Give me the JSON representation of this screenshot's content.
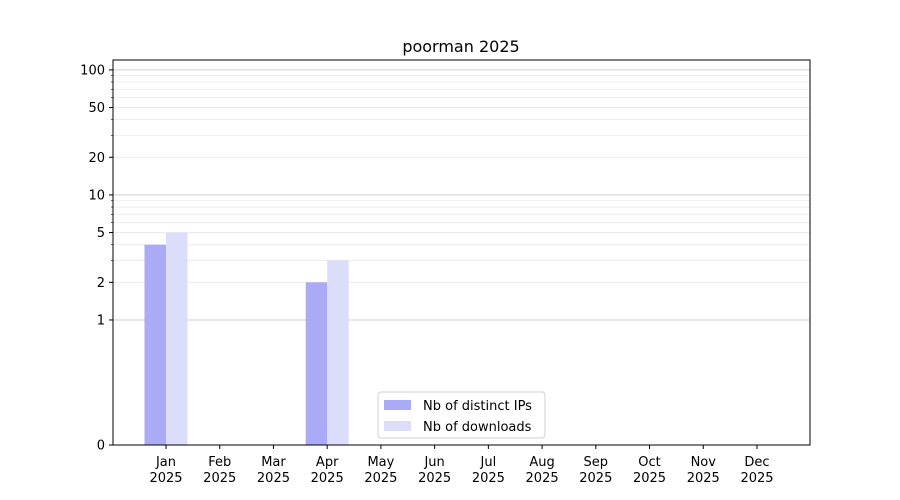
{
  "chart_data": {
    "type": "bar",
    "title": "poorman 2025",
    "xlabel": "",
    "ylabel": "",
    "yscale": "symlog",
    "ylim": [
      0,
      120
    ],
    "yticks": [
      0,
      1,
      2,
      5,
      10,
      20,
      50,
      100
    ],
    "categories": [
      {
        "month": "Jan",
        "year": "2025"
      },
      {
        "month": "Feb",
        "year": "2025"
      },
      {
        "month": "Mar",
        "year": "2025"
      },
      {
        "month": "Apr",
        "year": "2025"
      },
      {
        "month": "May",
        "year": "2025"
      },
      {
        "month": "Jun",
        "year": "2025"
      },
      {
        "month": "Jul",
        "year": "2025"
      },
      {
        "month": "Aug",
        "year": "2025"
      },
      {
        "month": "Sep",
        "year": "2025"
      },
      {
        "month": "Oct",
        "year": "2025"
      },
      {
        "month": "Nov",
        "year": "2025"
      },
      {
        "month": "Dec",
        "year": "2025"
      }
    ],
    "series": [
      {
        "name": "Nb of distinct IPs",
        "color": "#aaaaf7",
        "values": [
          4,
          0,
          0,
          2,
          0,
          0,
          0,
          0,
          0,
          0,
          0,
          0
        ]
      },
      {
        "name": "Nb of downloads",
        "color": "#dcdcfb",
        "values": [
          5,
          0,
          0,
          3,
          0,
          0,
          0,
          0,
          0,
          0,
          0,
          0
        ]
      }
    ],
    "grid": true,
    "legend_position": "bottom-center"
  }
}
